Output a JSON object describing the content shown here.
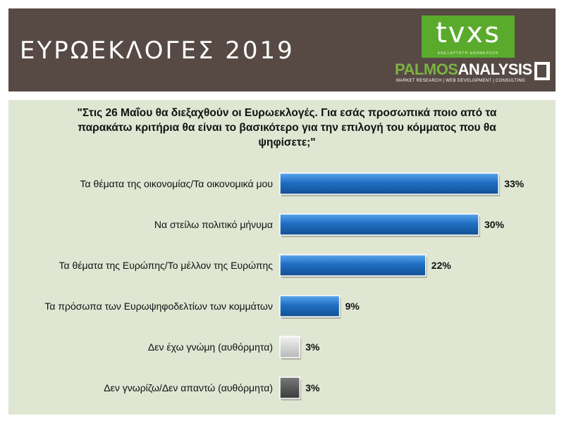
{
  "header": {
    "title": "ΕΥΡΩΕΚΛΟΓΕΣ 2019",
    "logo_tvxs": "tvxs",
    "logo_tvxs_sub": "ΑΝΕΞΑΡΤΗΤΗ ΕΝΗΜΕΡΩΣΗ",
    "logo_palmos_a": "PALMOS",
    "logo_palmos_b": "ANALYSIS",
    "logo_palmos_sub": "MARKET RESEARCH | WEB DEVELOPMENT | CONSULTING"
  },
  "colors": {
    "header_bg": "#574a45",
    "panel_bg": "#dfe6d2",
    "bar_blue": "#1f6fc4",
    "bar_light": "#d4d4d4",
    "bar_dark": "#555555"
  },
  "chart_data": {
    "type": "bar",
    "orientation": "horizontal",
    "title": "\"Στις 26 Μαΐου θα διεξαχθούν οι Ευρωεκλογές. Για εσάς προσωπικά ποιο από τα παρακάτω κριτήρια θα είναι το βασικότερο για την επιλογή του κόμματος που θα ψηφίσετε;\"",
    "categories": [
      "Τα θέματα της οικονομίας/Τα οικονομικά μου",
      "Να στείλω πολιτικό μήνυμα",
      "Τα θέματα της Ευρώπης/Το μέλλον της Ευρώπης",
      "Τα πρόσωπα των Ευρωψηφοδελτίων των κομμάτων",
      "Δεν έχω γνώμη (αυθόρμητα)",
      "Δεν γνωρίζω/Δεν απαντώ (αυθόρμητα)"
    ],
    "values": [
      33,
      30,
      22,
      9,
      3,
      3
    ],
    "value_labels": [
      "33%",
      "30%",
      "22%",
      "9%",
      "3%",
      "3%"
    ],
    "bar_colors": [
      "#1f6fc4",
      "#1f6fc4",
      "#1f6fc4",
      "#1f6fc4",
      "#d4d4d4",
      "#555555"
    ],
    "xlim": [
      0,
      40
    ],
    "grid": false,
    "legend": false
  }
}
